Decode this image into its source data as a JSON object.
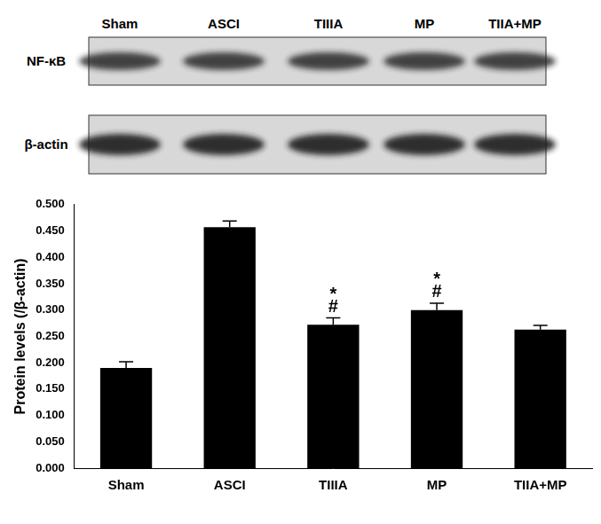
{
  "blot": {
    "lanes": [
      "Sham",
      "ASCI",
      "TIIIA",
      "MP",
      "TIIA+MP"
    ],
    "rows": [
      "NF-κB",
      "β-actin"
    ]
  },
  "chart_data": {
    "type": "bar",
    "categories": [
      "Sham",
      "ASCI",
      "TIIIA",
      "MP",
      "TIIA+MP"
    ],
    "values": [
      0.19,
      0.457,
      0.272,
      0.3,
      0.263
    ],
    "errors": [
      0.012,
      0.012,
      0.013,
      0.013,
      0.008
    ],
    "color": "#000000",
    "y_label": "Protein levels (/β-actin)",
    "ylim": [
      0,
      0.5
    ],
    "yticks": [
      {
        "value": 0,
        "label": "0.000"
      },
      {
        "value": 0.05,
        "label": "0.050"
      },
      {
        "value": 0.1,
        "label": "0.100"
      },
      {
        "value": 0.15,
        "label": "0.150"
      },
      {
        "value": 0.2,
        "label": "0.200"
      },
      {
        "value": 0.25,
        "label": "0.250"
      },
      {
        "value": 0.3,
        "label": "0.300"
      },
      {
        "value": 0.35,
        "label": "0.350"
      },
      {
        "value": 0.4,
        "label": "0.400"
      },
      {
        "value": 0.45,
        "label": "0.450"
      },
      {
        "value": 0.5,
        "label": "0.500"
      }
    ],
    "grid": false,
    "annotations": [
      {
        "category": "TIIIA",
        "texts": [
          "*",
          "#"
        ]
      },
      {
        "category": "MP",
        "texts": [
          "*",
          "#"
        ]
      }
    ]
  }
}
